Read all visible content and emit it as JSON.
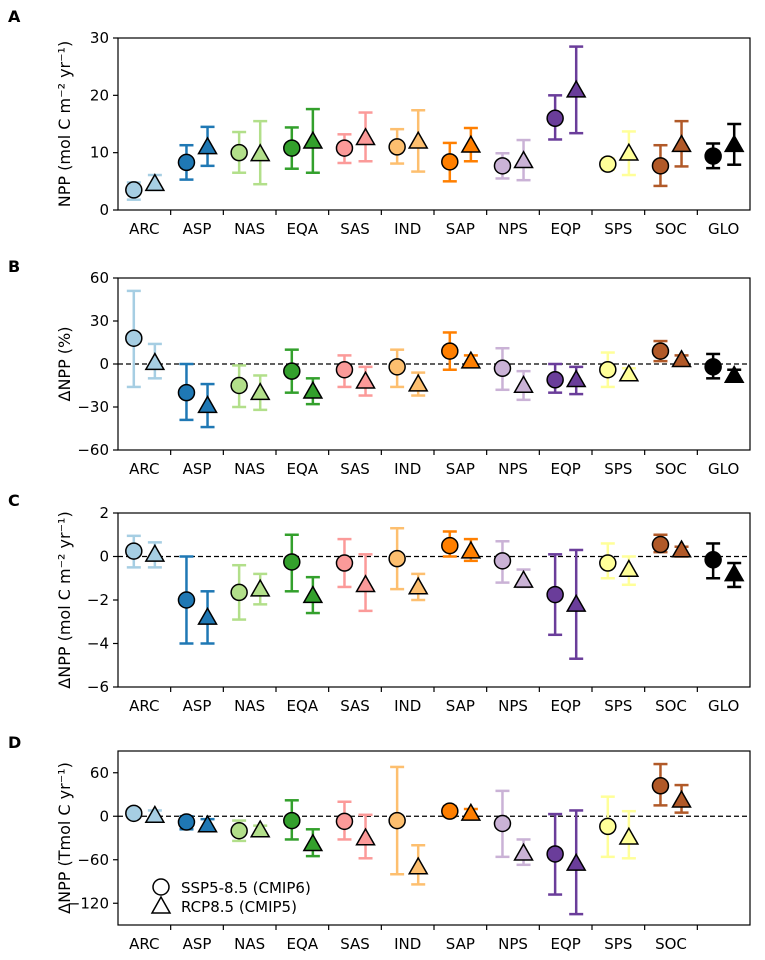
{
  "figure": {
    "legend": {
      "circle_label": "SSP5-8.5 (CMIP6)",
      "triangle_label": "RCP8.5 (CMIP5)"
    }
  },
  "chart_data": [
    {
      "type": "scatter",
      "panel": "A",
      "ylabel": "NPP (mol C m⁻² yr⁻¹)",
      "ylim": [
        0,
        30
      ],
      "yticks": [
        0,
        10,
        20,
        30
      ],
      "zero_line": false,
      "categories": [
        "ARC",
        "ASP",
        "NAS",
        "EQA",
        "SAS",
        "IND",
        "SAP",
        "NPS",
        "EQP",
        "SPS",
        "SOC",
        "GLO"
      ],
      "colors": [
        "#a6cee3",
        "#1f78b4",
        "#b2df8a",
        "#33a02c",
        "#fb9a99",
        "#fdbf6f",
        "#ff7f00",
        "#cab2d6",
        "#6a3d9a",
        "#ffff99",
        "#b15928",
        "#000000"
      ],
      "series": [
        {
          "name": "SSP5-8.5 (CMIP6)",
          "marker": "circle",
          "values": [
            3.5,
            8.3,
            10.0,
            10.8,
            10.8,
            11.0,
            8.4,
            7.7,
            16.0,
            8.0,
            7.7,
            9.4
          ],
          "err_low": [
            1.8,
            5.3,
            6.5,
            7.2,
            8.2,
            8.1,
            5.0,
            5.5,
            12.3,
            7.0,
            4.2,
            7.3
          ],
          "err_high": [
            4.8,
            11.3,
            13.6,
            14.4,
            13.2,
            14.1,
            11.7,
            9.9,
            20.0,
            9.0,
            11.3,
            11.6
          ]
        },
        {
          "name": "RCP8.5 (CMIP5)",
          "marker": "triangle",
          "values": [
            4.6,
            11.0,
            9.8,
            12.0,
            12.6,
            12.0,
            11.3,
            8.6,
            20.9,
            9.9,
            11.4,
            11.4
          ],
          "err_low": [
            3.5,
            7.7,
            4.5,
            6.5,
            8.5,
            6.7,
            8.5,
            5.2,
            13.4,
            6.1,
            7.6,
            7.9
          ],
          "err_high": [
            6.1,
            14.5,
            15.5,
            17.6,
            17.0,
            17.4,
            14.3,
            12.2,
            28.5,
            13.7,
            15.5,
            15.0
          ]
        }
      ]
    },
    {
      "type": "scatter",
      "panel": "B",
      "ylabel": "ΔNPP (%)",
      "ylim": [
        -60,
        60
      ],
      "yticks": [
        -60,
        -30,
        0,
        30,
        60
      ],
      "zero_line": true,
      "categories": [
        "ARC",
        "ASP",
        "NAS",
        "EQA",
        "SAS",
        "IND",
        "SAP",
        "NPS",
        "EQP",
        "SPS",
        "SOC",
        "GLO"
      ],
      "colors": [
        "#a6cee3",
        "#1f78b4",
        "#b2df8a",
        "#33a02c",
        "#fb9a99",
        "#fdbf6f",
        "#ff7f00",
        "#cab2d6",
        "#6a3d9a",
        "#ffff99",
        "#b15928",
        "#000000"
      ],
      "series": [
        {
          "name": "SSP5-8.5 (CMIP6)",
          "marker": "circle",
          "values": [
            18,
            -20,
            -15,
            -5,
            -4,
            -2,
            9,
            -3,
            -11,
            -4,
            9,
            -2
          ],
          "err_low": [
            -16,
            -39,
            -30,
            -20,
            -16,
            -16,
            -4,
            -18,
            -20,
            -16,
            2,
            -10
          ],
          "err_high": [
            51,
            0,
            -1,
            10,
            6,
            10,
            22,
            11,
            0,
            8,
            16,
            7
          ]
        },
        {
          "name": "RCP8.5 (CMIP5)",
          "marker": "triangle",
          "values": [
            1,
            -29,
            -20,
            -19,
            -12,
            -14,
            2,
            -15,
            -11,
            -7,
            3,
            -8
          ],
          "err_low": [
            -10,
            -44,
            -32,
            -28,
            -22,
            -22,
            -2,
            -25,
            -21,
            -11,
            -1,
            -12
          ],
          "err_high": [
            14,
            -14,
            -8,
            -10,
            -2,
            -6,
            6,
            -5,
            -2,
            -3,
            6,
            -4
          ]
        }
      ]
    },
    {
      "type": "scatter",
      "panel": "C",
      "ylabel": "ΔNPP (mol C m⁻² yr⁻¹)",
      "ylim": [
        -6,
        2
      ],
      "yticks": [
        -6,
        -4,
        -2,
        0,
        2
      ],
      "zero_line": true,
      "categories": [
        "ARC",
        "ASP",
        "NAS",
        "EQA",
        "SAS",
        "IND",
        "SAP",
        "NPS",
        "EQP",
        "SPS",
        "SOC",
        "GLO"
      ],
      "colors": [
        "#a6cee3",
        "#1f78b4",
        "#b2df8a",
        "#33a02c",
        "#fb9a99",
        "#fdbf6f",
        "#ff7f00",
        "#cab2d6",
        "#6a3d9a",
        "#ffff99",
        "#b15928",
        "#000000"
      ],
      "series": [
        {
          "name": "SSP5-8.5 (CMIP6)",
          "marker": "circle",
          "values": [
            0.25,
            -2.0,
            -1.65,
            -0.25,
            -0.3,
            -0.1,
            0.5,
            -0.2,
            -1.75,
            -0.3,
            0.55,
            -0.15
          ],
          "err_low": [
            -0.5,
            -4.0,
            -2.9,
            -1.6,
            -1.4,
            -1.5,
            0.0,
            -1.2,
            -3.6,
            -1.0,
            0.2,
            -1.0
          ],
          "err_high": [
            0.95,
            0.0,
            -0.4,
            1.0,
            0.8,
            1.3,
            1.15,
            0.7,
            0.1,
            0.6,
            1.0,
            0.6
          ]
        },
        {
          "name": "RCP8.5 (CMIP5)",
          "marker": "triangle",
          "values": [
            0.1,
            -2.8,
            -1.5,
            -1.8,
            -1.3,
            -1.4,
            0.25,
            -1.1,
            -2.2,
            -0.6,
            0.3,
            -0.8
          ],
          "err_low": [
            -0.5,
            -4.0,
            -2.2,
            -2.6,
            -2.5,
            -2.0,
            -0.2,
            -1.4,
            -4.7,
            -1.3,
            0.0,
            -1.4
          ],
          "err_high": [
            0.65,
            -1.6,
            -0.8,
            -0.95,
            0.1,
            -0.8,
            0.8,
            -0.6,
            0.3,
            0.0,
            0.45,
            -0.3
          ]
        }
      ]
    },
    {
      "type": "scatter",
      "panel": "D",
      "ylabel": "ΔNPP (Tmol C yr⁻¹)",
      "ylim": [
        -150,
        90
      ],
      "yticks": [
        -120,
        -60,
        0,
        60
      ],
      "zero_line": true,
      "categories": [
        "ARC",
        "ASP",
        "NAS",
        "EQA",
        "SAS",
        "IND",
        "SAP",
        "NPS",
        "EQP",
        "SPS",
        "SOC"
      ],
      "colors": [
        "#a6cee3",
        "#1f78b4",
        "#b2df8a",
        "#33a02c",
        "#fb9a99",
        "#fdbf6f",
        "#ff7f00",
        "#cab2d6",
        "#6a3d9a",
        "#ffff99",
        "#b15928"
      ],
      "series": [
        {
          "name": "SSP5-8.5 (CMIP6)",
          "marker": "circle",
          "values": [
            4,
            -8,
            -20,
            -6,
            -7,
            -6,
            7,
            -10,
            -52,
            -14,
            42
          ],
          "err_low": [
            -2,
            -18,
            -34,
            -32,
            -32,
            -80,
            0,
            -56,
            -108,
            -56,
            15
          ],
          "err_high": [
            10,
            0,
            -6,
            22,
            20,
            68,
            14,
            35,
            3,
            27,
            72
          ]
        },
        {
          "name": "RCP8.5 (CMIP5)",
          "marker": "triangle",
          "values": [
            1,
            -12,
            -19,
            -38,
            -30,
            -70,
            4,
            -51,
            -65,
            -29,
            22
          ],
          "err_low": [
            -3,
            -20,
            -25,
            -55,
            -58,
            -94,
            -4,
            -67,
            -135,
            -58,
            5
          ],
          "err_high": [
            8,
            -4,
            -13,
            -18,
            2,
            -40,
            10,
            -32,
            8,
            7,
            43
          ]
        }
      ]
    }
  ]
}
